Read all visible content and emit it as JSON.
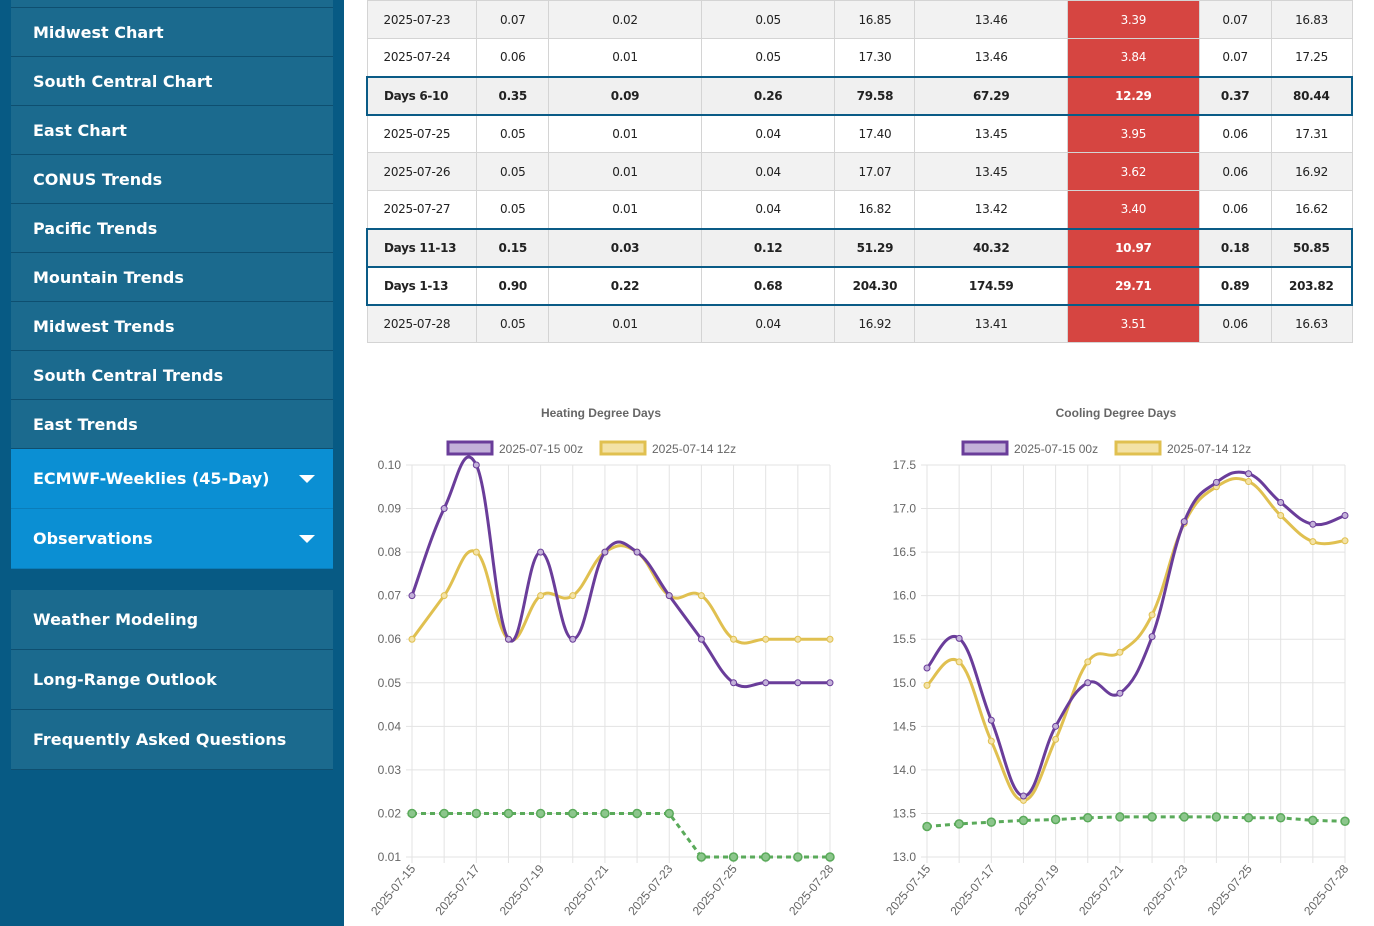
{
  "sidebar": {
    "items": [
      {
        "label": ""
      },
      {
        "label": "Midwest Chart"
      },
      {
        "label": "South Central Chart"
      },
      {
        "label": "East Chart"
      },
      {
        "label": "CONUS Trends"
      },
      {
        "label": "Pacific Trends"
      },
      {
        "label": "Mountain Trends"
      },
      {
        "label": "Midwest Trends"
      },
      {
        "label": "South Central Trends"
      },
      {
        "label": "East Trends"
      }
    ],
    "expandables": [
      {
        "label": "ECMWF-Weeklies (45-Day)"
      },
      {
        "label": "Observations"
      }
    ],
    "bottom": [
      {
        "label": "Weather Modeling"
      },
      {
        "label": "Long-Range Outlook"
      },
      {
        "label": "Frequently Asked Questions"
      }
    ]
  },
  "table": {
    "rows": [
      {
        "type": "odd",
        "cells": [
          "2025-07-23",
          "0.07",
          "0.02",
          "0.05",
          "16.85",
          "13.46",
          "3.39",
          "0.07",
          "16.83"
        ]
      },
      {
        "type": "even",
        "cells": [
          "2025-07-24",
          "0.06",
          "0.01",
          "0.05",
          "17.30",
          "13.46",
          "3.84",
          "0.07",
          "17.25"
        ]
      },
      {
        "type": "sum",
        "cells": [
          "Days 6-10",
          "0.35",
          "0.09",
          "0.26",
          "79.58",
          "67.29",
          "12.29",
          "0.37",
          "80.44"
        ]
      },
      {
        "type": "even",
        "cells": [
          "2025-07-25",
          "0.05",
          "0.01",
          "0.04",
          "17.40",
          "13.45",
          "3.95",
          "0.06",
          "17.31"
        ]
      },
      {
        "type": "odd",
        "cells": [
          "2025-07-26",
          "0.05",
          "0.01",
          "0.04",
          "17.07",
          "13.45",
          "3.62",
          "0.06",
          "16.92"
        ]
      },
      {
        "type": "even",
        "cells": [
          "2025-07-27",
          "0.05",
          "0.01",
          "0.04",
          "16.82",
          "13.42",
          "3.40",
          "0.06",
          "16.62"
        ]
      },
      {
        "type": "sum",
        "cells": [
          "Days 11-13",
          "0.15",
          "0.03",
          "0.12",
          "51.29",
          "40.32",
          "10.97",
          "0.18",
          "50.85"
        ]
      },
      {
        "type": "sumwhite",
        "cells": [
          "Days 1-13",
          "0.90",
          "0.22",
          "0.68",
          "204.30",
          "174.59",
          "29.71",
          "0.89",
          "203.82"
        ]
      },
      {
        "type": "odd",
        "cells": [
          "2025-07-28",
          "0.05",
          "0.01",
          "0.04",
          "16.92",
          "13.41",
          "3.51",
          "0.06",
          "16.63"
        ]
      }
    ],
    "highlight_color": "#d64541"
  },
  "chart_data": [
    {
      "type": "line",
      "title": "Heating Degree Days",
      "x": [
        "2025-07-15",
        "2025-07-16",
        "2025-07-17",
        "2025-07-18",
        "2025-07-19",
        "2025-07-20",
        "2025-07-21",
        "2025-07-22",
        "2025-07-23",
        "2025-07-24",
        "2025-07-25",
        "2025-07-26",
        "2025-07-27",
        "2025-07-28"
      ],
      "xtick_labels": [
        "2025-07-15",
        "2025-07-17",
        "2025-07-19",
        "2025-07-21",
        "2025-07-23",
        "2025-07-25",
        "2025-07-28"
      ],
      "ylim": [
        0.01,
        0.1
      ],
      "yticks": [
        "0.10",
        "0.09",
        "0.08",
        "0.07",
        "0.06",
        "0.05",
        "0.04",
        "0.03",
        "0.02",
        "0.01"
      ],
      "legend_position": "top",
      "grid": true,
      "series": [
        {
          "name": "2025-07-15 00z",
          "color": "#6a3d9a",
          "fill": "#c3b1d9",
          "values": [
            0.07,
            0.09,
            0.1,
            0.06,
            0.08,
            0.06,
            0.08,
            0.08,
            0.07,
            0.06,
            0.05,
            0.05,
            0.05,
            0.05
          ]
        },
        {
          "name": "2025-07-14 12z",
          "color": "#e0c050",
          "fill": "#f3e2a6",
          "values": [
            0.06,
            0.07,
            0.08,
            0.06,
            0.07,
            0.07,
            0.08,
            0.08,
            0.07,
            0.07,
            0.06,
            0.06,
            0.06,
            0.06
          ]
        },
        {
          "name": "",
          "color": "#5aaa5a",
          "dashed": true,
          "values": [
            0.02,
            0.02,
            0.02,
            0.02,
            0.02,
            0.02,
            0.02,
            0.02,
            0.02,
            0.01,
            0.01,
            0.01,
            0.01,
            0.01
          ]
        }
      ]
    },
    {
      "type": "line",
      "title": "Cooling Degree Days",
      "x": [
        "2025-07-15",
        "2025-07-16",
        "2025-07-17",
        "2025-07-18",
        "2025-07-19",
        "2025-07-20",
        "2025-07-21",
        "2025-07-22",
        "2025-07-23",
        "2025-07-24",
        "2025-07-25",
        "2025-07-26",
        "2025-07-27",
        "2025-07-28"
      ],
      "xtick_labels": [
        "2025-07-15",
        "2025-07-17",
        "2025-07-19",
        "2025-07-21",
        "2025-07-23",
        "2025-07-25",
        "2025-07-28"
      ],
      "ylim": [
        13.0,
        17.5
      ],
      "yticks": [
        "17.5",
        "17.0",
        "16.5",
        "16.0",
        "15.5",
        "15.0",
        "14.5",
        "14.0",
        "13.5",
        "13.0"
      ],
      "legend_position": "top",
      "grid": true,
      "series": [
        {
          "name": "2025-07-15 00z",
          "color": "#6a3d9a",
          "fill": "#c3b1d9",
          "values": [
            15.17,
            15.51,
            14.57,
            13.7,
            14.5,
            15.0,
            14.88,
            15.53,
            16.85,
            17.3,
            17.4,
            17.07,
            16.82,
            16.92
          ]
        },
        {
          "name": "2025-07-14 12z",
          "color": "#e0c050",
          "fill": "#f3e2a6",
          "values": [
            14.97,
            15.24,
            14.33,
            13.65,
            14.35,
            15.24,
            15.35,
            15.78,
            16.83,
            17.25,
            17.31,
            16.92,
            16.62,
            16.63
          ]
        },
        {
          "name": "",
          "color": "#5aaa5a",
          "dashed": true,
          "values": [
            13.35,
            13.38,
            13.4,
            13.42,
            13.43,
            13.45,
            13.46,
            13.46,
            13.46,
            13.46,
            13.45,
            13.45,
            13.42,
            13.41
          ]
        }
      ]
    }
  ]
}
